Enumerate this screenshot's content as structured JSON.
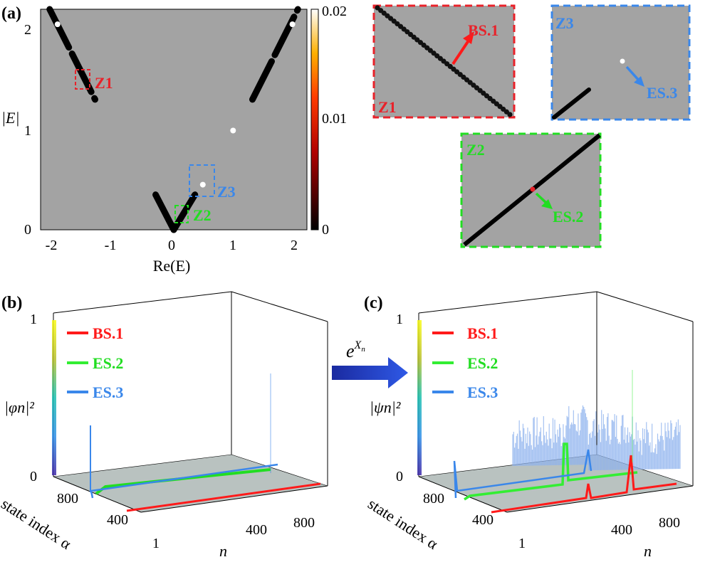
{
  "panels": {
    "a": {
      "label": "(a)"
    },
    "b": {
      "label": "(b)"
    },
    "c": {
      "label": "(c)"
    }
  },
  "chart_data": [
    {
      "type": "scatter",
      "panel": "a",
      "xlabel": "Re(E)",
      "ylabel": "|E|",
      "xlim": [
        -2.2,
        2.2
      ],
      "ylim": [
        0,
        2.2
      ],
      "xticks": [
        "-2",
        "-1",
        "0",
        "1",
        "2"
      ],
      "yticks": [
        "0",
        "1",
        "2"
      ],
      "colorbar": {
        "min": 0,
        "max": 0.02,
        "ticks": [
          "0",
          "0.01",
          "0.02"
        ]
      },
      "series": [
        {
          "name": "left-upper",
          "x": [
            -2.05,
            -1.3
          ],
          "y": [
            2.2,
            1.3
          ]
        },
        {
          "name": "right-upper",
          "x": [
            1.3,
            2.05
          ],
          "y": [
            1.3,
            2.2
          ]
        },
        {
          "name": "V-left",
          "x": [
            -0.3,
            0.0
          ],
          "y": [
            0.35,
            0.0
          ]
        },
        {
          "name": "V-right",
          "x": [
            0.0,
            0.35
          ],
          "y": [
            0.0,
            0.35
          ]
        }
      ],
      "highlights": [
        {
          "name": "BS.1",
          "x": -1.92,
          "y": 2.05
        },
        {
          "name": "ES.3",
          "x": 0.48,
          "y": 0.45
        },
        {
          "name": "isolated",
          "x": 0.98,
          "y": 0.99
        },
        {
          "name": "right-white",
          "x": 1.96,
          "y": 2.05
        }
      ],
      "zoom_boxes": [
        {
          "name": "Z1",
          "color": "#e8222a"
        },
        {
          "name": "Z2",
          "color": "#22dd22"
        },
        {
          "name": "Z3",
          "color": "#3a87ea"
        }
      ],
      "insets": [
        {
          "name": "Z1",
          "arrow_label": "BS.1"
        },
        {
          "name": "Z3",
          "arrow_label": "ES.3"
        },
        {
          "name": "Z2",
          "arrow_label": "ES.2"
        }
      ]
    },
    {
      "type": "line",
      "panel": "b",
      "zlabel": "|φn|²",
      "xlabel": "n",
      "ylabel": "state index α",
      "zticks": [
        "0",
        "1"
      ],
      "nticks": [
        "400",
        "800"
      ],
      "alphaticks": [
        "1",
        "400",
        "800"
      ],
      "series": [
        {
          "name": "BS.1",
          "color": "#ff1a1a"
        },
        {
          "name": "ES.2",
          "color": "#33ee33"
        },
        {
          "name": "ES.3",
          "color": "#3a87ea"
        }
      ]
    },
    {
      "type": "line",
      "panel": "c",
      "zlabel": "|ψn|²",
      "xlabel": "n",
      "ylabel": "state index α",
      "zticks": [
        "0",
        "1"
      ],
      "nticks": [
        "400",
        "800"
      ],
      "alphaticks": [
        "1",
        "400",
        "800"
      ],
      "transform_label": "e^{X_n}",
      "series": [
        {
          "name": "BS.1",
          "color": "#ff1a1a"
        },
        {
          "name": "ES.2",
          "color": "#33ee33"
        },
        {
          "name": "ES.3",
          "color": "#3a87ea"
        }
      ]
    }
  ],
  "colors": {
    "plot_bg": "#a3a3a3",
    "red": "#e8222a",
    "green": "#22dd22",
    "blue": "#3a87ea"
  }
}
